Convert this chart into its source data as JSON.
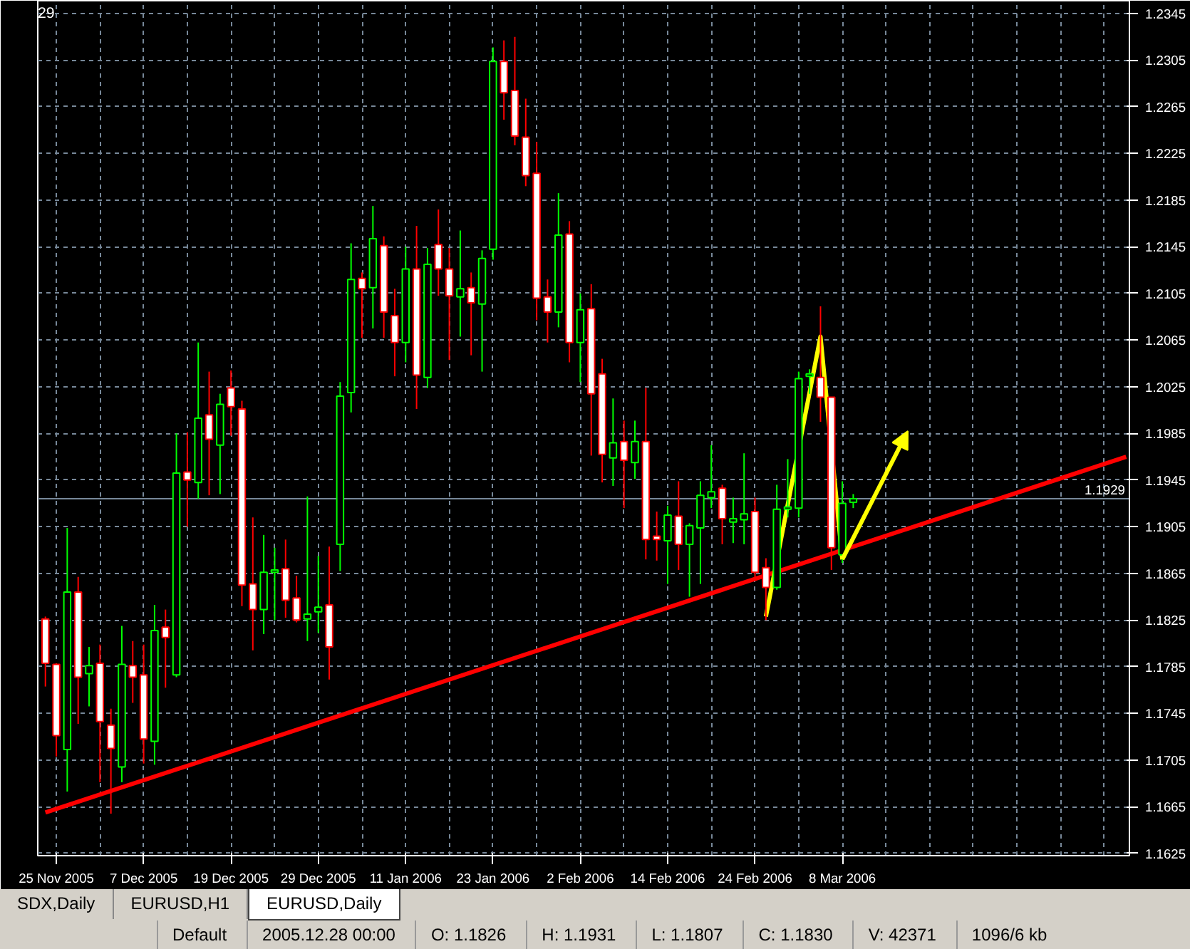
{
  "chart_data": {
    "type": "candlestick",
    "title": "29",
    "categories": [
      null,
      "25 Nov 2005",
      null,
      null,
      null,
      null,
      null,
      null,
      null,
      "7 Dec 2005",
      null,
      null,
      null,
      null,
      null,
      null,
      null,
      "19 Dec 2005",
      null,
      null,
      null,
      null,
      null,
      null,
      null,
      "29 Dec 2005",
      null,
      null,
      null,
      null,
      null,
      null,
      null,
      "11 Jan 2006",
      null,
      null,
      null,
      null,
      null,
      null,
      null,
      "23 Jan 2006",
      null,
      null,
      null,
      null,
      null,
      null,
      null,
      "2 Feb 2006",
      null,
      null,
      null,
      null,
      null,
      null,
      null,
      "14 Feb 2006",
      null,
      null,
      null,
      null,
      null,
      null,
      null,
      "24 Feb 2006",
      null,
      null,
      null,
      null,
      null,
      null,
      null,
      "8 Mar 2006",
      null,
      null,
      null,
      null,
      null,
      null,
      null,
      null,
      null,
      null,
      null,
      null,
      null,
      null,
      null,
      null,
      null,
      null,
      null,
      null,
      null,
      null,
      null,
      null,
      null,
      null
    ],
    "ohlc": [
      [
        1.1826,
        1.1828,
        1.1768,
        1.1788
      ],
      [
        1.1787,
        1.1788,
        1.1708,
        1.1726
      ],
      [
        1.1714,
        1.1904,
        1.1678,
        1.1849
      ],
      [
        1.1849,
        1.1862,
        1.1736,
        1.1776
      ],
      [
        1.1779,
        1.1802,
        1.1751,
        1.1786
      ],
      [
        1.1788,
        1.1804,
        1.1686,
        1.1738
      ],
      [
        1.1735,
        1.1749,
        1.1659,
        1.1715
      ],
      [
        1.1699,
        1.182,
        1.1686,
        1.1787
      ],
      [
        1.1786,
        1.1807,
        1.1754,
        1.1776
      ],
      [
        1.1778,
        1.1804,
        1.1702,
        1.1723
      ],
      [
        1.1721,
        1.1838,
        1.1701,
        1.1816
      ],
      [
        1.1819,
        1.1834,
        1.1767,
        1.181
      ],
      [
        1.1778,
        1.1985,
        1.1776,
        1.1951
      ],
      [
        1.1952,
        1.1986,
        1.1905,
        1.1945
      ],
      [
        1.1943,
        1.2063,
        1.1929,
        1.1998
      ],
      [
        1.2001,
        1.2038,
        1.1932,
        1.198
      ],
      [
        1.1975,
        1.2019,
        1.1933,
        1.201
      ],
      [
        1.2024,
        1.2039,
        1.1983,
        1.2008
      ],
      [
        1.2006,
        1.2013,
        1.1837,
        1.1855
      ],
      [
        1.1856,
        1.1913,
        1.1799,
        1.1834
      ],
      [
        1.1834,
        1.1898,
        1.1813,
        1.1866
      ],
      [
        1.1866,
        1.1887,
        1.1825,
        1.1868
      ],
      [
        1.1869,
        1.1894,
        1.1827,
        1.1842
      ],
      [
        1.1844,
        1.1863,
        1.1823,
        1.1825
      ],
      [
        1.1826,
        1.1931,
        1.1807,
        1.183
      ],
      [
        1.1832,
        1.188,
        1.1814,
        1.1836
      ],
      [
        1.1838,
        1.1888,
        1.1774,
        1.1802
      ],
      [
        1.189,
        1.2029,
        1.1867,
        1.2017
      ],
      [
        1.202,
        1.2148,
        1.2003,
        1.2117
      ],
      [
        1.2118,
        1.2123,
        1.2067,
        1.2109
      ],
      [
        1.211,
        1.218,
        1.2075,
        1.2152
      ],
      [
        1.2146,
        1.2154,
        1.2067,
        1.2089
      ],
      [
        1.2086,
        1.2109,
        1.2034,
        1.2063
      ],
      [
        1.2063,
        1.2145,
        1.2046,
        1.2126
      ],
      [
        1.2126,
        1.2163,
        1.2006,
        1.2035
      ],
      [
        1.2033,
        1.2144,
        1.2024,
        1.213
      ],
      [
        1.2147,
        1.2177,
        1.2103,
        1.2126
      ],
      [
        1.2126,
        1.2144,
        1.2048,
        1.2103
      ],
      [
        1.2102,
        1.2159,
        1.2068,
        1.2109
      ],
      [
        1.211,
        1.2123,
        1.2052,
        1.2097
      ],
      [
        1.2096,
        1.2142,
        1.2038,
        1.2135
      ],
      [
        1.2143,
        1.2316,
        1.2134,
        1.2304
      ],
      [
        1.2304,
        1.2322,
        1.2254,
        1.2277
      ],
      [
        1.2279,
        1.2325,
        1.2232,
        1.224
      ],
      [
        1.2239,
        1.2272,
        1.2197,
        1.2206
      ],
      [
        1.2208,
        1.2235,
        1.2082,
        1.2101
      ],
      [
        1.2102,
        1.2117,
        1.2063,
        1.2089
      ],
      [
        1.2089,
        1.2191,
        1.2076,
        1.2155
      ],
      [
        1.2156,
        1.2167,
        1.2046,
        1.2063
      ],
      [
        1.2063,
        1.2105,
        1.2029,
        1.2091
      ],
      [
        1.2092,
        1.2113,
        1.1966,
        1.2019
      ],
      [
        1.2036,
        1.2049,
        1.1943,
        1.1967
      ],
      [
        1.1964,
        1.2015,
        1.194,
        1.1977
      ],
      [
        1.1978,
        1.1996,
        1.1921,
        1.1962
      ],
      [
        1.196,
        1.1996,
        1.1946,
        1.1978
      ],
      [
        1.1978,
        1.2024,
        1.1877,
        1.1894
      ],
      [
        1.1897,
        1.1918,
        1.1876,
        1.1894
      ],
      [
        1.1893,
        1.1923,
        1.1856,
        1.1915
      ],
      [
        1.1914,
        1.1944,
        1.1868,
        1.189
      ],
      [
        1.189,
        1.1908,
        1.1845,
        1.1906
      ],
      [
        1.1904,
        1.1944,
        1.1856,
        1.1932
      ],
      [
        1.193,
        1.1975,
        1.1921,
        1.1935
      ],
      [
        1.1938,
        1.1941,
        1.189,
        1.1912
      ],
      [
        1.1909,
        1.193,
        1.1891,
        1.1912
      ],
      [
        1.1911,
        1.1968,
        1.189,
        1.1916
      ],
      [
        1.1918,
        1.193,
        1.1859,
        1.1866
      ],
      [
        1.187,
        1.1878,
        1.1825,
        1.1853
      ],
      [
        1.1853,
        1.1941,
        1.1851,
        1.192
      ],
      [
        1.192,
        1.1963,
        1.1913,
        1.1922
      ],
      [
        1.1921,
        1.2038,
        1.1913,
        1.2032
      ],
      [
        1.2034,
        1.204,
        1.2019,
        1.2036
      ],
      [
        1.2033,
        1.2094,
        1.1995,
        1.2016
      ],
      [
        1.2016,
        1.2016,
        1.1868,
        1.1887
      ],
      [
        1.1881,
        1.1944,
        1.1874,
        1.1925
      ],
      [
        1.1926,
        1.1933,
        1.1921,
        1.1929
      ],
      null,
      null,
      null,
      null,
      null,
      null,
      null,
      null,
      null,
      null,
      null,
      null,
      null,
      null,
      null,
      null,
      null,
      null,
      null,
      null,
      null,
      null,
      null,
      null,
      null
    ],
    "colors": [
      "#ff0000",
      "#ff0000",
      "#00ff00",
      "#ff0000",
      "#00ff00",
      "#ff0000",
      "#ff0000",
      "#00ff00",
      "#ff0000",
      "#ff0000",
      "#00ff00",
      "#ff0000",
      "#00ff00",
      "#ff0000",
      "#00ff00",
      "#ff0000",
      "#00ff00",
      "#ff0000",
      "#ff0000",
      "#ff0000",
      "#00ff00",
      "#00ff00",
      "#ff0000",
      "#ff0000",
      "#00ff00",
      "#00ff00",
      "#ff0000",
      "#00ff00",
      "#00ff00",
      "#ff0000",
      "#00ff00",
      "#ff0000",
      "#ff0000",
      "#00ff00",
      "#ff0000",
      "#00ff00",
      "#ff0000",
      "#ff0000",
      "#00ff00",
      "#ff0000",
      "#00ff00",
      "#00ff00",
      "#ff0000",
      "#ff0000",
      "#ff0000",
      "#ff0000",
      "#ff0000",
      "#00ff00",
      "#ff0000",
      "#00ff00",
      "#ff0000",
      "#ff0000",
      "#00ff00",
      "#ff0000",
      "#00ff00",
      "#ff0000",
      "#ff0000",
      "#00ff00",
      "#ff0000",
      "#00ff00",
      "#00ff00",
      "#00ff00",
      "#ff0000",
      "#00ff00",
      "#00ff00",
      "#ff0000",
      "#ff0000",
      "#00ff00",
      "#00ff00",
      "#00ff00",
      "#00ff00",
      "#ff0000",
      "#ff0000",
      "#00ff00",
      "#00ff00",
      null,
      null,
      null,
      null,
      null,
      null,
      null,
      null,
      null,
      null,
      null,
      null,
      null,
      null,
      null,
      null,
      null,
      null,
      null,
      null,
      null,
      null,
      null,
      null,
      null
    ],
    "series": [
      {
        "type": "line",
        "color": "#ff0000",
        "values": [
          1.166,
          null,
          null,
          null,
          null,
          null,
          null,
          null,
          null,
          null,
          null,
          null,
          null,
          null,
          null,
          null,
          null,
          null,
          null,
          null,
          null,
          null,
          null,
          null,
          null,
          null,
          null,
          null,
          null,
          null,
          null,
          null,
          null,
          null,
          null,
          null,
          null,
          null,
          null,
          null,
          null,
          null,
          null,
          null,
          null,
          null,
          null,
          null,
          null,
          null,
          null,
          null,
          null,
          null,
          null,
          null,
          null,
          null,
          null,
          null,
          null,
          null,
          null,
          null,
          null,
          null,
          null,
          null,
          null,
          null,
          null,
          null,
          null,
          null,
          null,
          null,
          null,
          null,
          null,
          null,
          null,
          null,
          null,
          null,
          null,
          null,
          null,
          null,
          null,
          null,
          null,
          null,
          null,
          null,
          null,
          null,
          null,
          null,
          null,
          1.1965
        ]
      },
      {
        "type": "line",
        "color": "#ffff00",
        "values": [
          null,
          null,
          null,
          null,
          null,
          null,
          null,
          null,
          null,
          null,
          null,
          null,
          null,
          null,
          null,
          null,
          null,
          null,
          null,
          null,
          null,
          null,
          null,
          null,
          null,
          null,
          null,
          null,
          null,
          null,
          null,
          null,
          null,
          null,
          null,
          null,
          null,
          null,
          null,
          null,
          null,
          null,
          null,
          null,
          null,
          null,
          null,
          null,
          null,
          null,
          null,
          null,
          null,
          null,
          null,
          null,
          null,
          null,
          null,
          null,
          null,
          null,
          null,
          null,
          null,
          null,
          1.1828,
          null,
          null,
          null,
          null,
          1.2068,
          null,
          1.1877,
          null,
          null,
          null,
          null,
          null,
          null,
          null,
          null,
          null,
          null,
          null,
          null,
          null,
          null,
          null,
          null,
          null,
          null,
          null,
          null,
          null,
          null,
          null,
          null,
          null,
          null
        ]
      }
    ],
    "ylim": [
      1.1623,
      1.2356
    ],
    "yticks": [
      1.1625,
      1.1665,
      1.1705,
      1.1745,
      1.1785,
      1.1825,
      1.1865,
      1.1905,
      1.1945,
      1.1985,
      1.2025,
      1.2065,
      1.2105,
      1.2145,
      1.2185,
      1.2225,
      1.2265,
      1.2305,
      1.2345
    ],
    "grid": true,
    "ref_lines": [
      {
        "axis": "y",
        "value": 1.1929,
        "label": "1.1929",
        "color": "#778899"
      }
    ],
    "annotations": [
      "SDX,Daily",
      "EURUSD,H1",
      "EURUSD,Daily",
      "Default",
      "2005.12.28 00:00",
      "O: 1.1826",
      "H: 1.1931",
      "L: 1.1807",
      "C: 1.1830",
      "V: 42371",
      "1096/6 kb"
    ]
  }
}
